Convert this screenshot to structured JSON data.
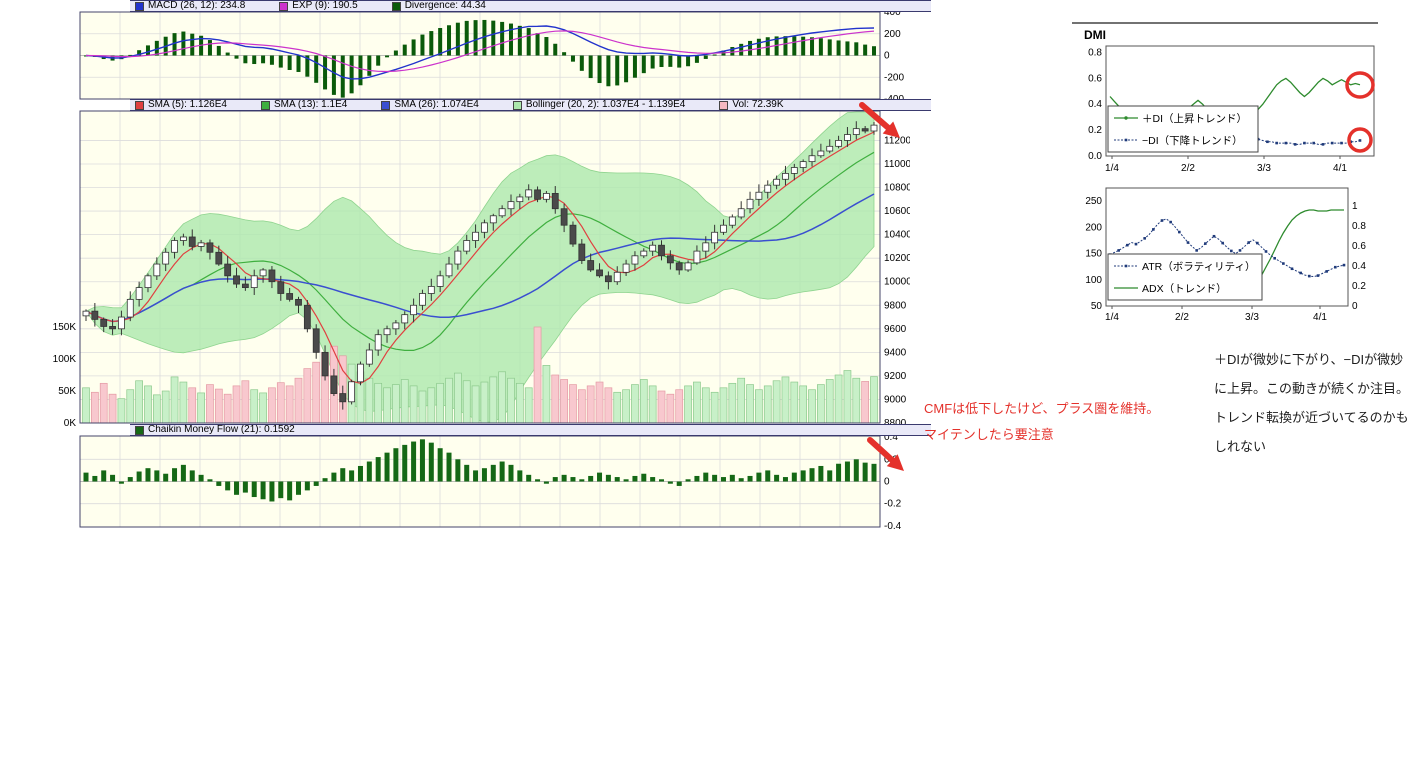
{
  "colors": {
    "panel_bg": "#FFFFEE",
    "legend_bg": "#E9E9F8",
    "grid": "#DCDCDC",
    "border": "#44446A",
    "up_candle": "#FFFFFF",
    "down_candle": "#4A4A4A",
    "candle_border": "#333333",
    "sma5": "#E04040",
    "sma13": "#3FAF3F",
    "sma26": "#3A4FD0",
    "bollinger_fill": "#ACE8AC",
    "vol_up": "#C8F0C8",
    "vol_up_border": "#8CC98C",
    "vol_down": "#F8C8CE",
    "vol_down_border": "#E49AA4",
    "macd_line": "#2233CC",
    "macd_signal": "#CC33CC",
    "macd_hist": "#0A5A0A",
    "cmf_bar": "#156815",
    "plus_di": "#2E8B2E",
    "minus_di": "#1F3A7A",
    "atr": "#1F3A7A",
    "adx": "#2E8B2E",
    "annotation_red": "#E4312B"
  },
  "legend_macd": {
    "items": [
      {
        "color": "#2233CC",
        "label": "MACD (26, 12): 234.8"
      },
      {
        "color": "#CC33CC",
        "label": "EXP (9): 190.5"
      },
      {
        "color": "#0A5A0A",
        "label": "Divergence: 44.34"
      }
    ]
  },
  "legend_price": {
    "items": [
      {
        "color": "#E04040",
        "label": "SMA (5): 1.126E4"
      },
      {
        "color": "#3FAF3F",
        "label": "SMA (13): 1.1E4"
      },
      {
        "color": "#3A4FD0",
        "label": "SMA (26): 1.074E4"
      },
      {
        "color": "#ACE8AC",
        "label": "Bollinger (20, 2): 1.037E4 - 1.139E4"
      },
      {
        "color": "#F4B8C0",
        "label": "Vol: 72.39K"
      }
    ]
  },
  "legend_cmf": {
    "items": [
      {
        "color": "#156815",
        "label": "Chaikin Money Flow (21): 0.1592"
      }
    ]
  },
  "chart_data": {
    "main": {
      "type": "candlestick",
      "close": [
        9750,
        9680,
        9620,
        9600,
        9700,
        9850,
        9950,
        10050,
        10150,
        10250,
        10350,
        10380,
        10300,
        10330,
        10250,
        10150,
        10050,
        9980,
        9950,
        10050,
        10100,
        10000,
        9900,
        9850,
        9800,
        9600,
        9400,
        9200,
        9050,
        8980,
        9150,
        9300,
        9420,
        9550,
        9600,
        9650,
        9720,
        9800,
        9900,
        9960,
        10050,
        10150,
        10260,
        10350,
        10420,
        10500,
        10560,
        10620,
        10680,
        10720,
        10780,
        10700,
        10750,
        10620,
        10480,
        10320,
        10180,
        10100,
        10050,
        10000,
        10080,
        10150,
        10220,
        10260,
        10310,
        10220,
        10160,
        10100,
        10160,
        10260,
        10330,
        10420,
        10480,
        10550,
        10620,
        10700,
        10760,
        10820,
        10870,
        10920,
        10970,
        11020,
        11070,
        11110,
        11150,
        11200,
        11250,
        11300,
        11280,
        11330
      ],
      "volume_k": [
        55,
        48,
        62,
        45,
        38,
        52,
        66,
        58,
        44,
        50,
        72,
        64,
        55,
        47,
        60,
        53,
        45,
        58,
        66,
        52,
        47,
        55,
        63,
        58,
        70,
        85,
        95,
        110,
        120,
        105,
        92,
        80,
        70,
        62,
        55,
        60,
        68,
        58,
        50,
        55,
        62,
        70,
        78,
        66,
        58,
        64,
        72,
        80,
        70,
        62,
        55,
        150,
        90,
        75,
        68,
        60,
        52,
        58,
        64,
        55,
        48,
        52,
        60,
        68,
        58,
        50,
        45,
        52,
        58,
        64,
        55,
        48,
        55,
        62,
        70,
        60,
        52,
        58,
        66,
        72,
        64,
        58,
        52,
        60,
        68,
        75,
        82,
        70,
        65,
        72.39
      ],
      "price_ticks": [
        11200,
        11000,
        10800,
        10600,
        10400,
        10200,
        10000,
        9800,
        9600,
        9400,
        9200,
        9000,
        8800
      ],
      "vol_ticks": [
        "150K",
        "100K",
        "50K",
        "0K"
      ],
      "indicators": {
        "sma5_last": "1.126E4",
        "sma13_last": "1.1E4",
        "sma26_last": "1.074E4",
        "bollinger_last": "1.037E4 - 1.139E4",
        "vol_last": "72.39K"
      }
    },
    "macd": {
      "type": "macd",
      "fast": 12,
      "slow": 26,
      "signal": 9,
      "last_macd": 234.8,
      "last_signal": 190.5,
      "last_divergence": 44.34,
      "yticks": [
        400,
        200,
        0,
        -200,
        -400
      ]
    },
    "cmf": {
      "type": "bar",
      "period": 21,
      "last": 0.1592,
      "values": [
        0.08,
        0.05,
        0.1,
        0.06,
        -0.02,
        0.04,
        0.09,
        0.12,
        0.1,
        0.07,
        0.12,
        0.15,
        0.1,
        0.06,
        0.02,
        -0.04,
        -0.08,
        -0.12,
        -0.1,
        -0.14,
        -0.16,
        -0.18,
        -0.15,
        -0.17,
        -0.12,
        -0.08,
        -0.04,
        0.03,
        0.08,
        0.12,
        0.1,
        0.14,
        0.18,
        0.22,
        0.26,
        0.3,
        0.33,
        0.36,
        0.38,
        0.35,
        0.3,
        0.26,
        0.2,
        0.15,
        0.1,
        0.12,
        0.15,
        0.18,
        0.15,
        0.1,
        0.06,
        0.02,
        -0.02,
        0.04,
        0.06,
        0.04,
        0.02,
        0.05,
        0.08,
        0.06,
        0.04,
        0.02,
        0.05,
        0.07,
        0.04,
        0.02,
        -0.02,
        -0.04,
        0.02,
        0.05,
        0.08,
        0.06,
        0.04,
        0.06,
        0.03,
        0.05,
        0.08,
        0.1,
        0.06,
        0.04,
        0.08,
        0.1,
        0.12,
        0.14,
        0.1,
        0.16,
        0.18,
        0.2,
        0.17,
        0.1592
      ],
      "yticks": [
        "0.4",
        "0.2",
        "0",
        "-0.2",
        "-0.4"
      ]
    },
    "dmi": {
      "type": "line",
      "title": "DMI",
      "yticks": [
        "0.8",
        "0.6",
        "0.4",
        "0.2",
        "0.0"
      ],
      "xticks": [
        "1/4",
        "2/2",
        "3/3",
        "4/1"
      ],
      "series": [
        {
          "name": "＋DI（上昇トレンド）",
          "color": "#2E8B2E",
          "values": [
            0.46,
            0.42,
            0.38,
            0.32,
            0.28,
            0.3,
            0.33,
            0.31,
            0.29,
            0.31,
            0.33,
            0.36,
            0.34,
            0.31,
            0.29,
            0.31,
            0.34,
            0.37,
            0.4,
            0.43,
            0.4,
            0.36,
            0.33,
            0.31,
            0.29,
            0.27,
            0.29,
            0.32,
            0.35,
            0.33,
            0.31,
            0.33,
            0.36,
            0.4,
            0.45,
            0.5,
            0.55,
            0.58,
            0.6,
            0.57,
            0.53,
            0.49,
            0.46,
            0.49,
            0.53,
            0.57,
            0.6,
            0.58,
            0.55,
            0.57,
            0.59,
            0.57,
            0.55,
            0.56,
            0.55
          ]
        },
        {
          "name": "−DI（下降トレンド）",
          "color": "#1F3A7A",
          "values": [
            0.18,
            0.2,
            0.23,
            0.26,
            0.29,
            0.27,
            0.25,
            0.27,
            0.29,
            0.31,
            0.29,
            0.27,
            0.25,
            0.27,
            0.3,
            0.32,
            0.34,
            0.32,
            0.3,
            0.32,
            0.34,
            0.33,
            0.31,
            0.29,
            0.27,
            0.25,
            0.23,
            0.21,
            0.19,
            0.17,
            0.15,
            0.14,
            0.13,
            0.12,
            0.11,
            0.11,
            0.1,
            0.1,
            0.1,
            0.1,
            0.09,
            0.09,
            0.1,
            0.1,
            0.1,
            0.09,
            0.09,
            0.1,
            0.1,
            0.1,
            0.1,
            0.1,
            0.11,
            0.11,
            0.12
          ]
        }
      ]
    },
    "atr_adx": {
      "type": "line",
      "left_ticks": [
        250,
        200,
        150,
        100,
        50
      ],
      "right_ticks": [
        "1",
        "0.8",
        "0.6",
        "0.4",
        "0.2",
        "0"
      ],
      "xticks": [
        "1/4",
        "2/2",
        "3/3",
        "4/1"
      ],
      "series": [
        {
          "name": "ATR（ボラティリティ）",
          "color": "#1F3A7A",
          "axis": "left",
          "values": [
            148,
            152,
            156,
            161,
            166,
            171,
            168,
            173,
            179,
            186,
            196,
            206,
            213,
            216,
            210,
            201,
            191,
            181,
            171,
            163,
            156,
            161,
            169,
            176,
            183,
            178,
            170,
            162,
            155,
            150,
            156,
            163,
            171,
            176,
            170,
            162,
            154,
            147,
            141,
            136,
            131,
            126,
            121,
            117,
            113,
            109,
            107,
            106,
            108,
            112,
            116,
            120,
            124,
            126,
            128
          ]
        },
        {
          "name": "ADX（トレンド）",
          "color": "#2E8B2E",
          "axis": "right",
          "values": [
            0.16,
            0.16,
            0.17,
            0.18,
            0.19,
            0.19,
            0.2,
            0.21,
            0.23,
            0.25,
            0.26,
            0.27,
            0.28,
            0.28,
            0.27,
            0.26,
            0.25,
            0.24,
            0.23,
            0.22,
            0.21,
            0.2,
            0.2,
            0.19,
            0.19,
            0.18,
            0.18,
            0.17,
            0.17,
            0.16,
            0.16,
            0.17,
            0.19,
            0.21,
            0.25,
            0.31,
            0.39,
            0.47,
            0.56,
            0.65,
            0.73,
            0.8,
            0.86,
            0.9,
            0.93,
            0.95,
            0.96,
            0.96,
            0.95,
            0.95,
            0.95,
            0.96,
            0.96,
            0.96,
            0.96
          ]
        }
      ]
    }
  },
  "annotations": {
    "cmf_note": {
      "color": "#E4312B",
      "lines": [
        "CMFは低下したけど、プラス圏を維持。",
        "マイテンしたら要注意"
      ]
    },
    "dmi_note": {
      "lines": [
        "＋DIが微妙に下がり、−DIが微妙",
        "に上昇。この動きが続くか注目。",
        "トレンド転換が近づいてるのかも",
        "しれない"
      ]
    },
    "marks": [
      "red-circle-on-plus-di-end",
      "red-circle-on-minus-di-end",
      "red-arrow-at-price-top-right",
      "red-arrow-at-cmf-right"
    ]
  }
}
